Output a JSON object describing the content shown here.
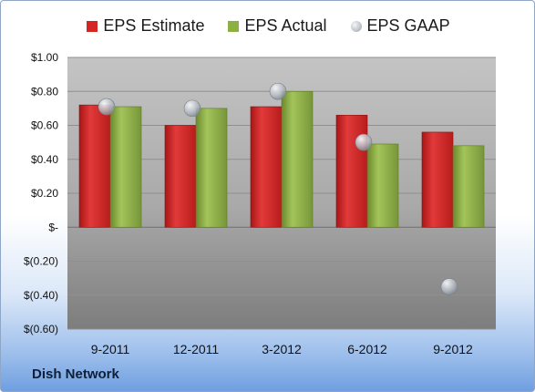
{
  "chart_data": {
    "type": "bar",
    "categories": [
      "9-2011",
      "12-2011",
      "3-2012",
      "6-2012",
      "9-2012"
    ],
    "series": [
      {
        "name": "EPS Estimate",
        "values": [
          0.72,
          0.6,
          0.71,
          0.66,
          0.56
        ],
        "color": "#d42424"
      },
      {
        "name": "EPS Actual",
        "values": [
          0.71,
          0.7,
          0.8,
          0.49,
          0.48
        ],
        "color": "#8db043"
      },
      {
        "name": "EPS GAAP",
        "values": [
          0.71,
          0.7,
          0.8,
          0.5,
          -0.35
        ],
        "color": "#b8bec6"
      }
    ],
    "ylim": [
      -0.6,
      1.0
    ],
    "yticks": [
      {
        "value": 1.0,
        "label": "$1.00"
      },
      {
        "value": 0.8,
        "label": "$0.80"
      },
      {
        "value": 0.6,
        "label": "$0.60"
      },
      {
        "value": 0.4,
        "label": "$0.40"
      },
      {
        "value": 0.2,
        "label": "$0.20"
      },
      {
        "value": 0.0,
        "label": "$-"
      },
      {
        "value": -0.2,
        "label": "$(0.20)"
      },
      {
        "value": -0.4,
        "label": "$(0.40)"
      },
      {
        "value": -0.6,
        "label": "$(0.60)"
      }
    ],
    "legend_position": "top",
    "grid": true,
    "plot_background": "#a8a8a8"
  },
  "brand": "Dish Network"
}
